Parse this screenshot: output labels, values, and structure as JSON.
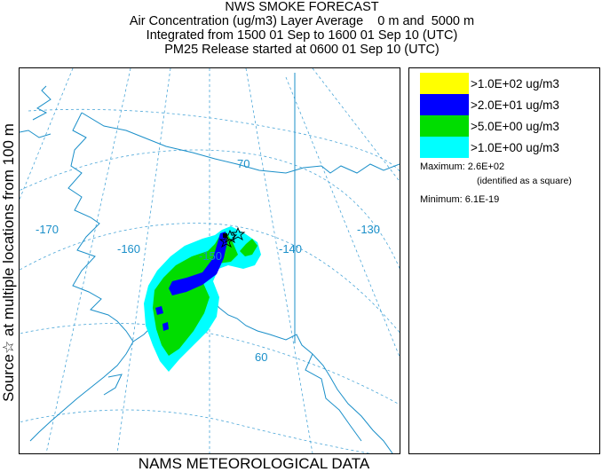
{
  "header": {
    "title": "NWS SMOKE FORECAST",
    "line2": "Air Concentration (ug/m3) Layer Average    0 m and  5000 m",
    "line3": "Integrated from 1500 01 Sep to 1600 01 Sep 10 (UTC)",
    "line4": "PM25 Release started at 0600 01 Sep 10 (UTC)"
  },
  "side_label": "Source☆ at multiple locations from 100 m",
  "bottom_label": "NAMS METEOROLOGICAL DATA",
  "map": {
    "longitude_labels": [
      "-170",
      "-160",
      "-150",
      "-140",
      "-130"
    ],
    "latitude_labels": [
      "70",
      "60"
    ],
    "colors": {
      "coast": "#1a8fc9",
      "graticule": "#4aa6d8",
      "level_1": "#00ffff",
      "level_2": "#00dd00",
      "level_3": "#0000ff",
      "level_4": "#ffff00"
    }
  },
  "legend": {
    "items": [
      {
        "color": "#ffff00",
        "label": ">1.0E+02 ug/m3"
      },
      {
        "color": "#0000ff",
        "label": ">2.0E+01 ug/m3"
      },
      {
        "color": "#00dd00",
        "label": ">5.0E+00 ug/m3"
      },
      {
        "color": "#00ffff",
        "label": ">1.0E+00 ug/m3"
      }
    ],
    "maximum_label": "Maximum:",
    "maximum_value": "2.6E+02",
    "maximum_note": "(identified as a square)",
    "minimum_label": "Minimum:",
    "minimum_value": "6.1E-19"
  }
}
